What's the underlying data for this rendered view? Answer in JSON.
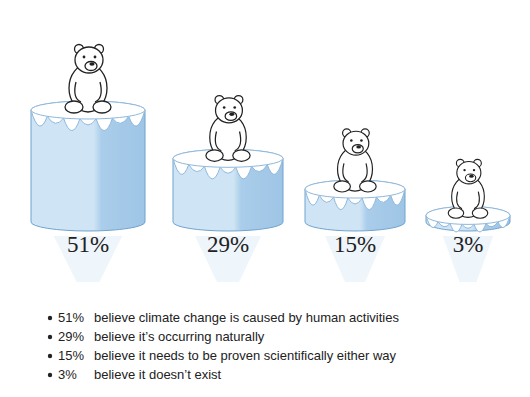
{
  "chart_data": {
    "type": "bar",
    "categories": [
      "believe climate change is caused by human activities",
      "believe it’s occurring naturally",
      "believe it needs to be proven scientifically either way",
      "believe it doesn’t exist"
    ],
    "values": [
      51,
      29,
      15,
      3
    ],
    "value_labels": [
      "51%",
      "29%",
      "15%",
      "3%"
    ],
    "color": "#cfe4f4",
    "data_labels": true,
    "tick_labels": false,
    "grid": false
  }
}
